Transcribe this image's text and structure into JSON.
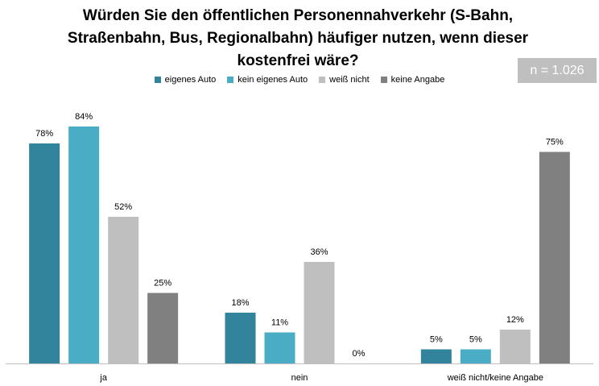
{
  "chart_data": {
    "type": "bar",
    "title_lines": [
      "Würden Sie den öffentlichen Personennahverkehr (S-Bahn,",
      "Straßenbahn, Bus, Regionalbahn) häufiger nutzen, wenn dieser",
      "kostenfrei wäre?"
    ],
    "sample_size": "n = 1.026",
    "categories": [
      "ja",
      "nein",
      "weiß nicht/keine Angabe"
    ],
    "series": [
      {
        "name": "eigenes Auto",
        "color": "#31849b",
        "values": [
          78,
          18,
          5
        ]
      },
      {
        "name": "kein eigenes Auto",
        "color": "#4bacc6",
        "values": [
          84,
          11,
          5
        ]
      },
      {
        "name": "weiß nicht",
        "color": "#bfbfbf",
        "values": [
          52,
          36,
          12
        ]
      },
      {
        "name": "keine Angabe",
        "color": "#808080",
        "values": [
          25,
          0,
          75
        ]
      }
    ],
    "value_suffix": "%",
    "ylim": [
      0,
      100
    ],
    "grid": false,
    "legend_position": "top"
  }
}
